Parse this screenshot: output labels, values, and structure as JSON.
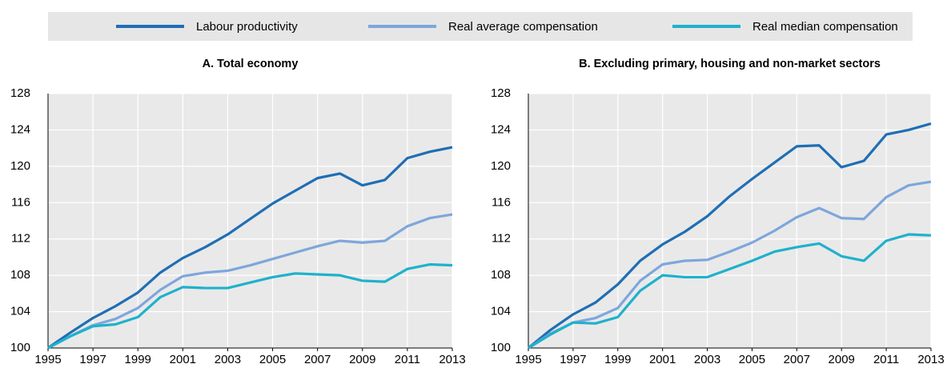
{
  "chart_data": [
    {
      "type": "line",
      "title": "A. Total economy",
      "x": [
        1995,
        1996,
        1997,
        1998,
        1999,
        2000,
        2001,
        2002,
        2003,
        2004,
        2005,
        2006,
        2007,
        2008,
        2009,
        2010,
        2011,
        2012,
        2013
      ],
      "xlim": [
        1995,
        2013
      ],
      "xticks": [
        1995,
        1997,
        1999,
        2001,
        2003,
        2005,
        2007,
        2009,
        2011,
        2013
      ],
      "ylim": [
        100,
        128
      ],
      "yticks": [
        100,
        104,
        108,
        112,
        116,
        120,
        124,
        128
      ],
      "grid": true,
      "series": [
        {
          "name": "Labour productivity",
          "color": "#1f6eb4",
          "values": [
            100,
            101.7,
            103.3,
            104.6,
            106.1,
            108.3,
            109.9,
            111.1,
            112.5,
            114.2,
            115.9,
            117.3,
            118.7,
            119.2,
            117.9,
            118.5,
            120.9,
            121.6,
            122.1
          ]
        },
        {
          "name": "Real average compensation",
          "color": "#7ea6dc",
          "values": [
            100,
            101.3,
            102.5,
            103.2,
            104.4,
            106.4,
            107.9,
            108.3,
            108.5,
            109.1,
            109.8,
            110.5,
            111.2,
            111.8,
            111.6,
            111.8,
            113.4,
            114.3,
            114.7
          ]
        },
        {
          "name": "Real median compensation",
          "color": "#1fb1cc",
          "values": [
            100,
            101.3,
            102.4,
            102.6,
            103.4,
            105.6,
            106.7,
            106.6,
            106.6,
            107.2,
            107.8,
            108.2,
            108.1,
            108.0,
            107.4,
            107.3,
            108.7,
            109.2,
            109.1
          ]
        }
      ]
    },
    {
      "type": "line",
      "title": "B. Excluding primary, housing and non-market sectors",
      "x": [
        1995,
        1996,
        1997,
        1998,
        1999,
        2000,
        2001,
        2002,
        2003,
        2004,
        2005,
        2006,
        2007,
        2008,
        2009,
        2010,
        2011,
        2012,
        2013
      ],
      "xlim": [
        1995,
        2013
      ],
      "xticks": [
        1995,
        1997,
        1999,
        2001,
        2003,
        2005,
        2007,
        2009,
        2011,
        2013
      ],
      "ylim": [
        100,
        128
      ],
      "yticks": [
        100,
        104,
        108,
        112,
        116,
        120,
        124,
        128
      ],
      "grid": true,
      "series": [
        {
          "color": "#1f6eb4",
          "values": [
            100,
            102.0,
            103.7,
            105.0,
            107.0,
            109.6,
            111.4,
            112.8,
            114.5,
            116.7,
            118.6,
            120.4,
            122.2,
            122.3,
            119.9,
            120.6,
            123.5,
            124.0,
            124.7
          ]
        },
        {
          "color": "#7ea6dc",
          "values": [
            100,
            101.6,
            102.8,
            103.3,
            104.4,
            107.4,
            109.2,
            109.6,
            109.7,
            110.6,
            111.6,
            112.9,
            114.4,
            115.4,
            114.3,
            114.2,
            116.6,
            117.9,
            118.3
          ]
        },
        {
          "color": "#1fb1cc",
          "values": [
            100,
            101.5,
            102.8,
            102.7,
            103.4,
            106.3,
            108.0,
            107.8,
            107.8,
            108.7,
            109.6,
            110.6,
            111.1,
            111.5,
            110.1,
            109.6,
            111.8,
            112.5,
            112.4
          ]
        }
      ]
    }
  ]
}
